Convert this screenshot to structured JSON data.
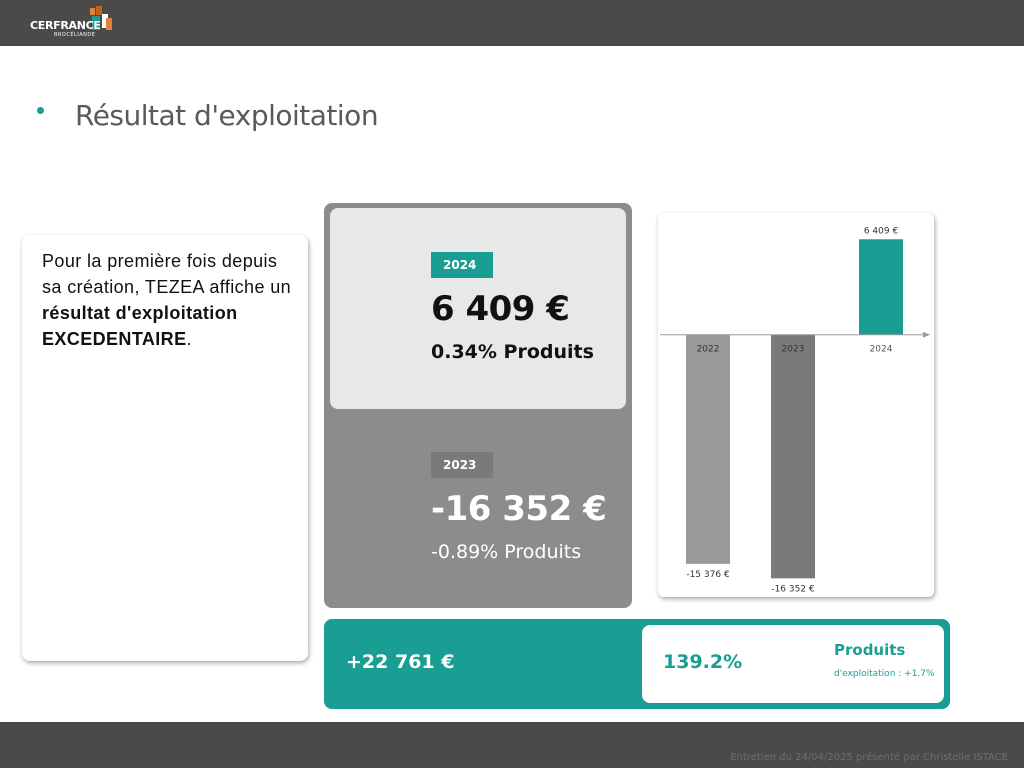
{
  "header": {
    "logo_text": "CERFRANCE",
    "logo_sub": "BROCÉLIANDE",
    "logo_colors": {
      "orange": "#e0823a",
      "teal": "#1a9e93",
      "white": "#ffffff",
      "dark_orange": "#c2611e"
    }
  },
  "title": "Résultat d'exploitation",
  "text_card": {
    "line1": "Pour la première fois depuis sa création, TEZEA affiche un ",
    "bold1": "résultat d'exploitation EXCEDENTAIRE",
    "end": "."
  },
  "year_cards": {
    "current": {
      "year": "2024",
      "amount": "6 409 €",
      "pct": "0.34% Produits"
    },
    "previous": {
      "year": "2023",
      "amount": "-16 352 €",
      "pct": "-0.89% Produits"
    }
  },
  "diff": {
    "amount": "+22 761 €",
    "pct": "139.2%",
    "label": "Produits",
    "note": "d'exploitation : +1.7%"
  },
  "footer": "Entretien du 24/04/2025 présenté par Christelle ISTACE",
  "colors": {
    "teal": "#1a9e93",
    "dark_gray": "#4a4a4a",
    "mid_gray": "#8c8c8c",
    "light_gray": "#e8e8e8"
  },
  "chart_data": {
    "type": "bar",
    "categories": [
      "2022",
      "2023",
      "2024"
    ],
    "values": [
      -15376,
      -16352,
      6409
    ],
    "value_labels": [
      "-15 376 €",
      "-16 352 €",
      "6 409 €"
    ],
    "colors": [
      "#999999",
      "#7a7a7a",
      "#1a9e93"
    ],
    "ylim": [
      -17000,
      7500
    ],
    "grid": false,
    "title": "",
    "xlabel": "",
    "ylabel": ""
  }
}
